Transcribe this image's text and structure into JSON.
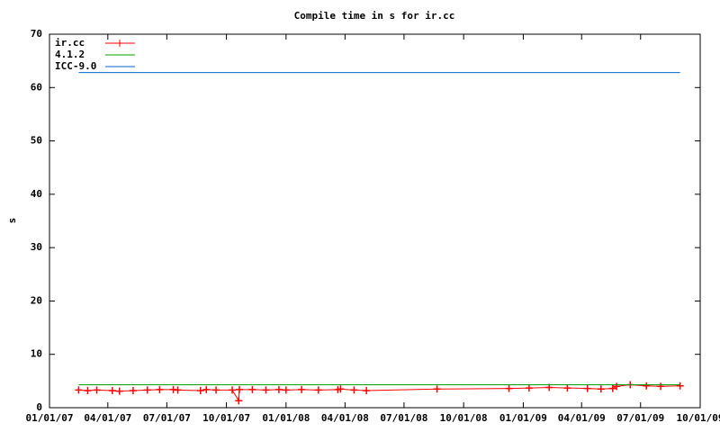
{
  "chart_data": {
    "type": "line",
    "title": "Compile time in s for ir.cc",
    "y_label": "s",
    "xlim": [
      "01/01/07",
      "10/01/09"
    ],
    "xticks": [
      "01/01/07",
      "04/01/07",
      "07/01/07",
      "10/01/07",
      "01/01/08",
      "04/01/08",
      "07/01/08",
      "10/01/08",
      "01/01/09",
      "04/01/09",
      "07/01/09",
      "10/01/09"
    ],
    "ylim": [
      0,
      70
    ],
    "yticks": [
      0,
      10,
      20,
      30,
      40,
      50,
      60,
      70
    ],
    "legend": "top-left",
    "series": [
      {
        "name": "ir.cc",
        "color": "#ff0000",
        "marker": "plus",
        "x": [
          "02/15/07",
          "03/01/07",
          "03/15/07",
          "04/08/07",
          "04/19/07",
          "05/10/07",
          "06/01/07",
          "06/20/07",
          "07/11/07",
          "07/18/07",
          "08/22/07",
          "08/31/07",
          "09/15/07",
          "10/10/07",
          "10/20/07",
          "10/21/07",
          "11/10/07",
          "12/01/07",
          "12/21/07",
          "01/01/08",
          "01/25/08",
          "02/20/08",
          "03/21/08",
          "03/25/08",
          "04/15/08",
          "05/04/08",
          "08/21/08",
          "12/10/08",
          "01/10/09",
          "02/10/09",
          "03/10/09",
          "04/10/09",
          "05/01/09",
          "05/19/09",
          "05/25/09",
          "06/15/09",
          "07/10/09",
          "08/01/09",
          "08/31/09"
        ],
        "values": [
          3.3,
          3.2,
          3.3,
          3.2,
          3.1,
          3.2,
          3.3,
          3.4,
          3.4,
          3.3,
          3.2,
          3.4,
          3.3,
          3.3,
          1.3,
          3.4,
          3.4,
          3.3,
          3.4,
          3.3,
          3.4,
          3.3,
          3.4,
          3.5,
          3.3,
          3.2,
          3.5,
          3.6,
          3.7,
          3.8,
          3.7,
          3.6,
          3.5,
          3.6,
          4.0,
          4.3,
          4.1,
          4.0,
          4.1
        ]
      },
      {
        "name": "4.1.2",
        "color": "#00a000",
        "x": [
          "02/15/07",
          "08/31/09"
        ],
        "values": [
          4.3,
          4.3
        ]
      },
      {
        "name": "ICC-9.0",
        "color": "#0066cc",
        "x": [
          "02/15/07",
          "08/31/09"
        ],
        "values": [
          62.8,
          62.8
        ]
      }
    ]
  }
}
